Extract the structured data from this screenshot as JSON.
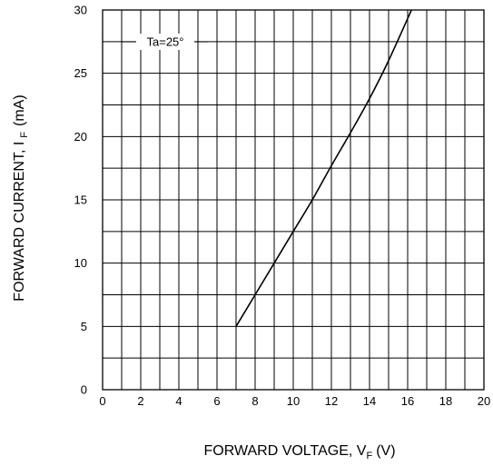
{
  "chart_data": {
    "type": "line",
    "xlabel": "FORWARD VOLTAGE, V",
    "xlabel_sub": "F",
    "xlabel_unit": "(V)",
    "ylabel": "FORWARD CURRENT, I",
    "ylabel_sub": "F",
    "ylabel_unit": "(mA)",
    "xlim": [
      0,
      20
    ],
    "ylim": [
      0,
      30
    ],
    "x_ticks": [
      0,
      2,
      4,
      6,
      8,
      10,
      12,
      14,
      16,
      18,
      20
    ],
    "y_ticks": [
      0,
      5,
      10,
      15,
      20,
      25,
      30
    ],
    "grid": true,
    "annotation": "Ta=25°",
    "series": [
      {
        "x": [
          7.0,
          8.0,
          9.0,
          10.0,
          11.0,
          12.0,
          13.0,
          14.0,
          15.0,
          16.2
        ],
        "y": [
          5.0,
          7.5,
          10.0,
          12.5,
          15.0,
          17.7,
          20.3,
          23.0,
          26.0,
          30.0
        ],
        "color": "#000000"
      }
    ]
  }
}
